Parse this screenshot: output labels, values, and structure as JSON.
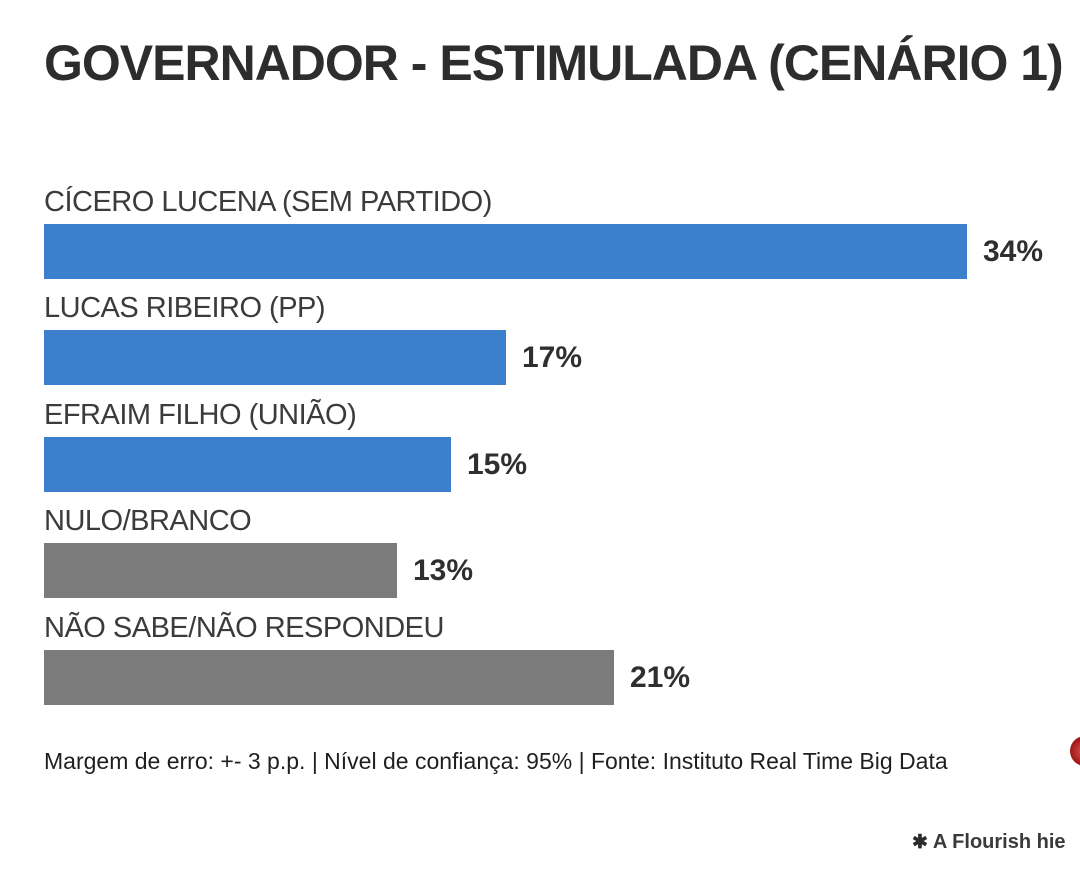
{
  "title": "GOVERNADOR - ESTIMULADA (CENÁRIO 1)",
  "footnote": "Margem de erro: +- 3 p.p. | Nível de confiança: 95% | Fonte: Instituto Real Time Big Data",
  "attribution": {
    "icon": "✱",
    "label": "A Flourish hie"
  },
  "colors": {
    "bar_blue": "#3b7fcd",
    "bar_gray": "#7b7b7b",
    "title_text": "#2d2d2d",
    "label_text": "#3b3b3b",
    "value_text": "#2f2f2f",
    "logo_red": "#a21c1c"
  },
  "chart_data": {
    "type": "bar",
    "orientation": "horizontal",
    "title": "GOVERNADOR - ESTIMULADA (CENÁRIO 1)",
    "categories": [
      "CÍCERO LUCENA (SEM PARTIDO)",
      "LUCAS RIBEIRO (PP)",
      "EFRAIM FILHO (UNIÃO)",
      "NULO/BRANCO",
      "NÃO SABE/NÃO RESPONDEU"
    ],
    "values": [
      34,
      17,
      15,
      13,
      21
    ],
    "value_labels": [
      "34%",
      "17%",
      "15%",
      "13%",
      "21%"
    ],
    "bar_colors": [
      "#3b7fcd",
      "#3b7fcd",
      "#3b7fcd",
      "#7b7b7b",
      "#7b7b7b"
    ],
    "xlim": [
      0,
      34
    ],
    "xlabel": "",
    "ylabel": "",
    "grid": false,
    "legend": "none",
    "footnote": "Margem de erro: +- 3 p.p. | Nível de confiança: 95% | Fonte: Instituto Real Time Big Data"
  }
}
